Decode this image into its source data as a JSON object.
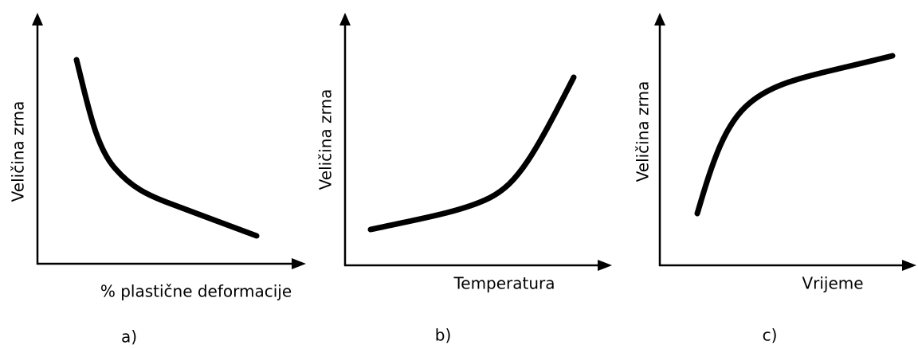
{
  "panels": [
    {
      "y_label": "Veličina zrna",
      "x_label": "% plastične deformacije",
      "caption": "a)"
    },
    {
      "y_label": "Veličina zrna",
      "x_label": "Temperatura",
      "caption": "b)"
    },
    {
      "y_label": "Veličina zrna",
      "x_label": "Vrijeme",
      "caption": "c)"
    }
  ]
}
